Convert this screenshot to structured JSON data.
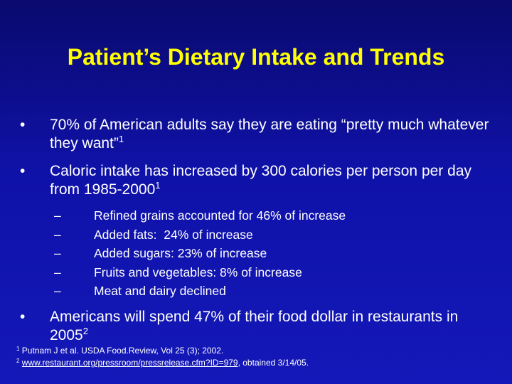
{
  "slide": {
    "title": "Patient’s Dietary Intake and Trends",
    "bullet_symbol": "•",
    "dash_symbol": "–",
    "bullets": [
      {
        "text": "70% of American adults say they are eating “pretty much whatever they want”",
        "ref": "1"
      },
      {
        "text": "Caloric intake has increased by 300 calories per person per day from 1985-2000",
        "ref": "1"
      },
      {
        "text": "Americans will spend 47% of their food dollar in restaurants in 2005",
        "ref": "2"
      }
    ],
    "subbullets": [
      "Refined grains accounted for 46% of increase",
      "Added fats:  24% of increase",
      "Added sugars: 23% of increase",
      "Fruits and vegetables: 8% of increase",
      "Meat and dairy declined"
    ],
    "references": {
      "ref1_num": "1",
      "ref1_text": " Putnam J et al. USDA Food.Review, Vol 25 (3); 2002.",
      "ref2_num": "2",
      "ref2_link": "www.restaurant.org/pressroom/pressrelease.cfm?ID=979",
      "ref2_rest": ", obtained 3/14/05."
    }
  }
}
